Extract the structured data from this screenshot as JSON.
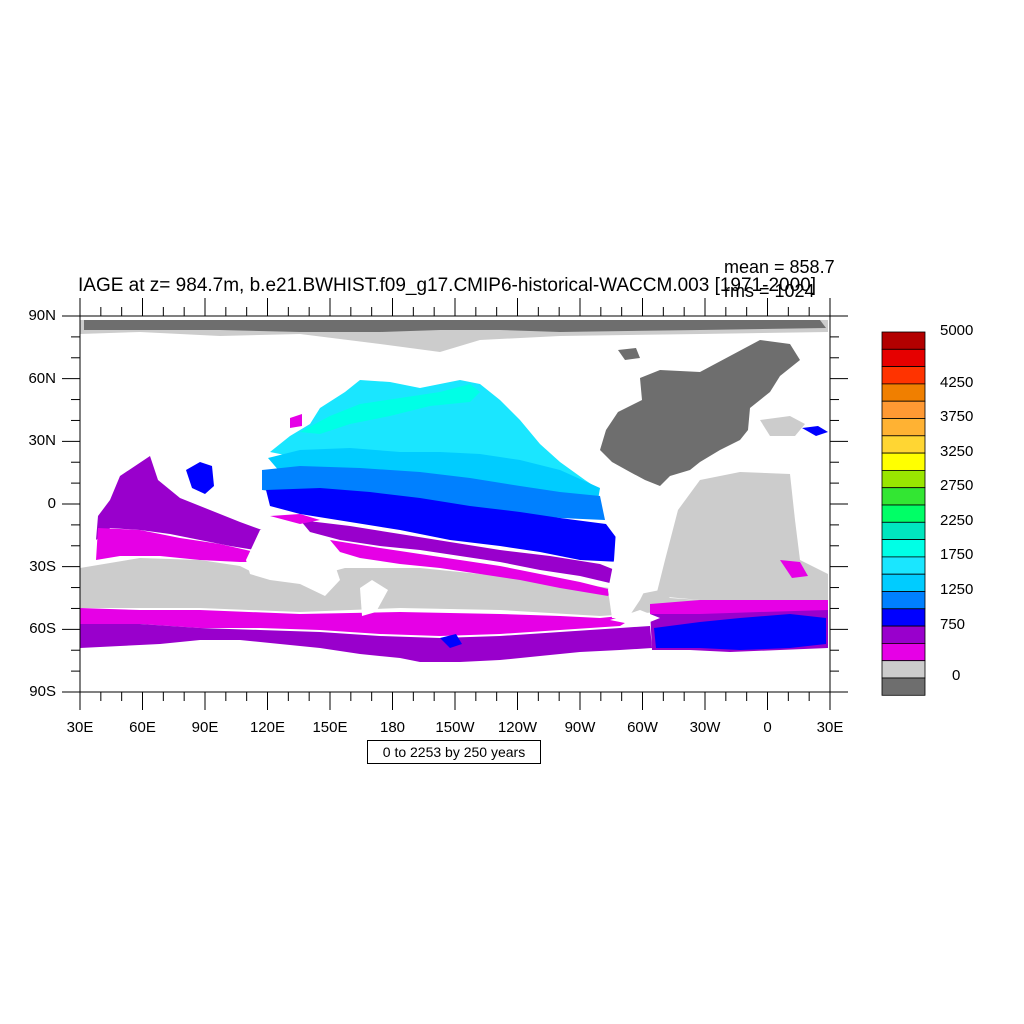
{
  "title": "IAGE at z= 984.7m, b.e21.BWHIST.f09_g17.CMIP6-historical-WACCM.003 [1971-2000]",
  "stats": {
    "mean": "mean = 858.7",
    "rms": "rms = 1024"
  },
  "contour_info": "0 to 2253 by 250 years",
  "axes": {
    "lat_labels": [
      "90N",
      "60N",
      "30N",
      "0",
      "30S",
      "60S",
      "90S"
    ],
    "lon_labels": [
      "30E",
      "60E",
      "90E",
      "120E",
      "150E",
      "180",
      "150W",
      "120W",
      "90W",
      "60W",
      "30W",
      "0",
      "30E"
    ]
  },
  "colorbar": {
    "labels": [
      "5000",
      "4250",
      "3750",
      "3250",
      "2750",
      "2250",
      "1750",
      "1250",
      "750",
      "0"
    ],
    "colors": [
      "#b30000",
      "#e60000",
      "#ff3300",
      "#f07f00",
      "#ff9933",
      "#ffb233",
      "#ffd633",
      "#ffff00",
      "#99e600",
      "#33e633",
      "#00ff66",
      "#00e6bf",
      "#00ffe6",
      "#1ae6ff",
      "#00ccff",
      "#0080ff",
      "#0000ff",
      "#9900cc",
      "#e600e6",
      "#cccccc",
      "#6e6e6e"
    ]
  },
  "map_colors": {
    "land": "#ffffff",
    "missing": "#cccccc",
    "dark": "#6e6e6e",
    "c0": "#e600e6",
    "c1": "#9900cc",
    "c2": "#0000ff",
    "c3": "#0080ff",
    "c4": "#00ccff",
    "c5": "#1ae6ff",
    "c6": "#00ffe6"
  }
}
